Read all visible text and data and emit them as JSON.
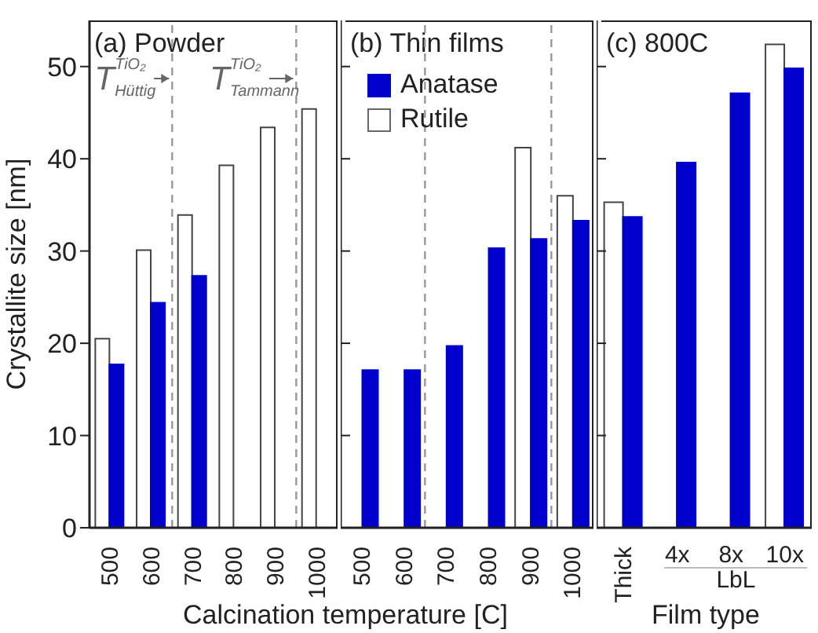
{
  "chart_data": [
    {
      "type": "bar",
      "title": "(a) Powder",
      "ylabel": "Crystallite size [nm]",
      "xlabel": "Calcination temperature [C]",
      "x": [
        500,
        600,
        700,
        800,
        900,
        1000
      ],
      "xlim": [
        450,
        1050
      ],
      "xticks": [
        500,
        600,
        700,
        800,
        900,
        1000
      ],
      "ylim": [
        0,
        55
      ],
      "yticks": [
        0,
        10,
        20,
        30,
        40,
        50
      ],
      "series": [
        {
          "color": "#0000cd",
          "values": [
            17.7,
            24.4,
            27.3,
            null,
            null,
            null
          ]
        },
        {
          "color": "#ffffff",
          "values": [
            20.5,
            30.1,
            33.9,
            39.3,
            43.4,
            45.4
          ]
        }
      ],
      "ref_lines": [
        {
          "axis": "x",
          "value": 650,
          "label": "T$^{TiO₂}$$_{Hüttig}$",
          "color": "#999999",
          "line_style": "dashed"
        },
        {
          "axis": "x",
          "value": 950,
          "label": "T$^{TiO₂}$$_{Tammann}$",
          "color": "#999999",
          "line_style": "dashed"
        }
      ]
    },
    {
      "type": "bar",
      "title": "(b) Thin films",
      "x": [
        500,
        600,
        700,
        800,
        900,
        1000
      ],
      "xlim": [
        450,
        1050
      ],
      "xticks": [
        500,
        600,
        700,
        800,
        900,
        1000
      ],
      "ylim": [
        0,
        55
      ],
      "yticks": [
        0,
        10,
        20,
        30,
        40,
        50
      ],
      "tick_labels": "x",
      "legend": "top left",
      "series": [
        {
          "name": "Anatase",
          "color": "#0000cd",
          "values": [
            17.1,
            17.1,
            19.7,
            30.3,
            31.3,
            33.3
          ]
        },
        {
          "name": "Rutile",
          "color": "#ffffff",
          "values": [
            null,
            null,
            null,
            null,
            41.2,
            36.0
          ]
        }
      ],
      "ref_lines": [
        {
          "axis": "x",
          "value": 650,
          "color": "#999999",
          "line_style": "dashed"
        },
        {
          "axis": "x",
          "value": 950,
          "color": "#999999",
          "line_style": "dashed"
        }
      ]
    },
    {
      "type": "bar",
      "title": "(c) 800C",
      "xlabel": "Film type",
      "categories": [
        "Thick",
        "4x",
        "8x",
        "10x"
      ],
      "ylim": [
        0,
        55
      ],
      "yticks": [
        0,
        10,
        20,
        30,
        40,
        50
      ],
      "tick_labels": "x",
      "annotations": [
        "LbL"
      ],
      "series": [
        {
          "color": "#0000cd",
          "values": [
            33.7,
            39.6,
            47.1,
            49.8
          ]
        },
        {
          "color": "#ffffff",
          "values": [
            35.3,
            null,
            null,
            52.4
          ]
        }
      ]
    }
  ]
}
